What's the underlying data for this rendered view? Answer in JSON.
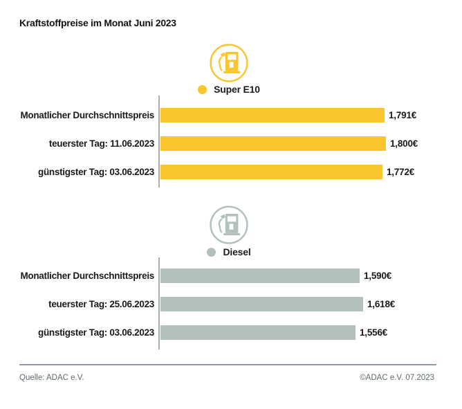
{
  "title": "Kraftstoffpreise im Monat Juni 2023",
  "colors": {
    "super": "#FBC62D",
    "diesel": "#B2C1BC",
    "axis": "#ADADAD",
    "footerline": "#8D9CA0",
    "footertext": "#5D6C70"
  },
  "footer": {
    "source": "Quelle: ADAC e.V.",
    "copyright": "©ADAC e.V. 07.2023"
  },
  "chart_data": [
    {
      "type": "bar",
      "orientation": "horizontal",
      "fuel": "Super E10",
      "color": "#FBC62D",
      "icon": "fuel-pump-icon",
      "categories": [
        "Monatlicher Durchschnittspreis",
        "teuerster Tag: 11.06.2023",
        "günstigster Tag: 03.06.2023"
      ],
      "values": [
        1.791,
        1.8,
        1.772
      ],
      "value_labels": [
        "1,791€",
        "1,800€",
        "1,772€"
      ],
      "unit": "€",
      "baseline": 0
    },
    {
      "type": "bar",
      "orientation": "horizontal",
      "fuel": "Diesel",
      "color": "#B2C1BC",
      "icon": "fuel-pump-icon",
      "categories": [
        "Monatlicher Durchschnittspreis",
        "teuerster Tag: 25.06.2023",
        "günstigster Tag: 03.06.2023"
      ],
      "values": [
        1.59,
        1.618,
        1.556
      ],
      "value_labels": [
        "1,590€",
        "1,618€",
        "1,556€"
      ],
      "unit": "€",
      "baseline": 0
    }
  ]
}
